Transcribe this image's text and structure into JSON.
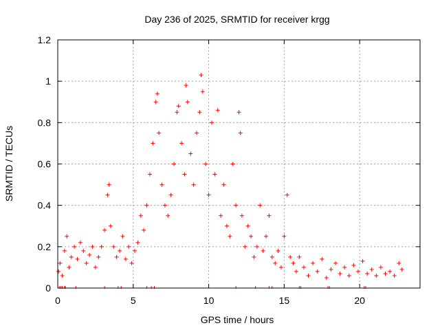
{
  "chart_data": {
    "type": "scatter",
    "title": "Day 236 of 2025, SRMTID for receiver krgg",
    "xlabel": "GPS time / hours",
    "ylabel": "SRMTID / TECUs",
    "xlim": [
      0,
      24
    ],
    "ylim": [
      0,
      1.2
    ],
    "x_ticks": [
      0,
      5,
      10,
      15,
      20
    ],
    "x_tick_labels": [
      "0",
      "5",
      "10",
      "15",
      "20"
    ],
    "y_ticks": [
      0,
      0.2,
      0.4,
      0.6,
      0.8,
      1.0,
      1.2
    ],
    "y_tick_labels": [
      "0",
      "0.2",
      "0.4",
      "0.6",
      "0.8",
      "1",
      "1.2"
    ],
    "grid": true,
    "marker": "+",
    "series_color": "#ff0000",
    "series": [
      {
        "name": "SRMTID",
        "x": [
          0.05,
          0.15,
          0.3,
          0.45,
          0.6,
          0.75,
          0.9,
          1.1,
          1.3,
          1.5,
          1.7,
          1.9,
          2.1,
          2.3,
          2.5,
          2.7,
          2.9,
          3.1,
          3.3,
          3.4,
          3.5,
          3.7,
          3.9,
          4.1,
          4.3,
          4.5,
          4.7,
          4.9,
          5.1,
          5.3,
          5.5,
          5.7,
          5.9,
          6.1,
          6.3,
          6.5,
          6.6,
          6.7,
          6.9,
          7.1,
          7.3,
          7.5,
          7.7,
          7.9,
          8.0,
          8.2,
          8.4,
          8.5,
          8.6,
          8.8,
          9.0,
          9.2,
          9.4,
          9.5,
          9.6,
          9.8,
          10.0,
          10.2,
          10.4,
          10.6,
          10.8,
          11.0,
          11.2,
          11.4,
          11.6,
          11.8,
          12.0,
          12.1,
          12.2,
          12.4,
          12.6,
          12.8,
          13.0,
          13.2,
          13.4,
          13.6,
          13.8,
          14.0,
          14.2,
          14.4,
          14.6,
          14.8,
          15.0,
          15.2,
          15.4,
          15.6,
          15.8,
          16.0,
          16.3,
          16.6,
          16.9,
          17.2,
          17.5,
          17.8,
          18.1,
          18.4,
          18.7,
          19.0,
          19.3,
          19.6,
          19.9,
          20.2,
          20.5,
          20.8,
          21.1,
          21.4,
          21.7,
          22.0,
          22.3,
          22.6,
          22.8
        ],
        "y": [
          0.08,
          0.12,
          0.06,
          0.18,
          0.25,
          0.1,
          0.15,
          0.2,
          0.14,
          0.22,
          0.18,
          0.12,
          0.16,
          0.2,
          0.1,
          0.15,
          0.2,
          0.28,
          0.45,
          0.5,
          0.3,
          0.2,
          0.15,
          0.18,
          0.25,
          0.14,
          0.2,
          0.12,
          0.18,
          0.22,
          0.35,
          0.28,
          0.4,
          0.55,
          0.7,
          0.9,
          0.94,
          0.75,
          0.5,
          0.4,
          0.35,
          0.45,
          0.6,
          0.85,
          0.88,
          0.7,
          0.55,
          0.98,
          0.9,
          0.65,
          0.5,
          0.75,
          0.85,
          1.03,
          0.95,
          0.6,
          0.45,
          0.8,
          0.55,
          0.86,
          0.35,
          0.5,
          0.3,
          0.25,
          0.6,
          0.4,
          0.85,
          0.75,
          0.35,
          0.2,
          0.3,
          0.25,
          0.15,
          0.2,
          0.4,
          0.18,
          0.25,
          0.35,
          0.15,
          0.12,
          0.18,
          0.1,
          0.25,
          0.45,
          0.15,
          0.12,
          0.08,
          0.15,
          0.1,
          0.06,
          0.12,
          0.08,
          0.14,
          0.05,
          0.09,
          0.12,
          0.07,
          0.1,
          0.06,
          0.11,
          0.08,
          0.13,
          0.07,
          0.09,
          0.06,
          0.1,
          0.07,
          0.08,
          0.06,
          0.12,
          0.09
        ]
      }
    ],
    "baseline_flags_x": [
      0.1,
      0.2,
      0.3,
      0.45,
      0.5,
      1.2,
      3.1,
      4.0,
      4.2,
      5.9,
      6.2,
      6.4,
      11.8,
      13.1,
      14.0,
      14.2,
      16.0,
      16.1,
      17.9,
      18.0,
      20.3,
      20.4
    ]
  }
}
